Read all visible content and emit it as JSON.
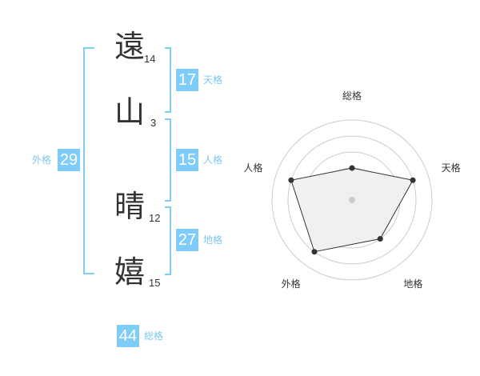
{
  "name": {
    "chars": [
      {
        "char": "遠",
        "strokes": "14"
      },
      {
        "char": "山",
        "strokes": "3"
      },
      {
        "char": "晴",
        "strokes": "12"
      },
      {
        "char": "嬉",
        "strokes": "15"
      }
    ]
  },
  "kakusu": {
    "tenkaku": {
      "label": "天格",
      "value": "17"
    },
    "jinkaku": {
      "label": "人格",
      "value": "15"
    },
    "chikaku": {
      "label": "地格",
      "value": "27"
    },
    "gaikaku": {
      "label": "外格",
      "value": "29"
    },
    "soukaku": {
      "label": "総格",
      "value": "44"
    }
  },
  "colors": {
    "accent": "#80ccf8",
    "polygon_fill": "#f0f0f0",
    "polygon_stroke": "#333333"
  },
  "radar": {
    "max": 5,
    "axes": [
      {
        "label": "総格",
        "level": 2
      },
      {
        "label": "天格",
        "level": 4
      },
      {
        "label": "地格",
        "level": 3
      },
      {
        "label": "外格",
        "level": 4
      },
      {
        "label": "人格",
        "level": 4
      }
    ]
  }
}
